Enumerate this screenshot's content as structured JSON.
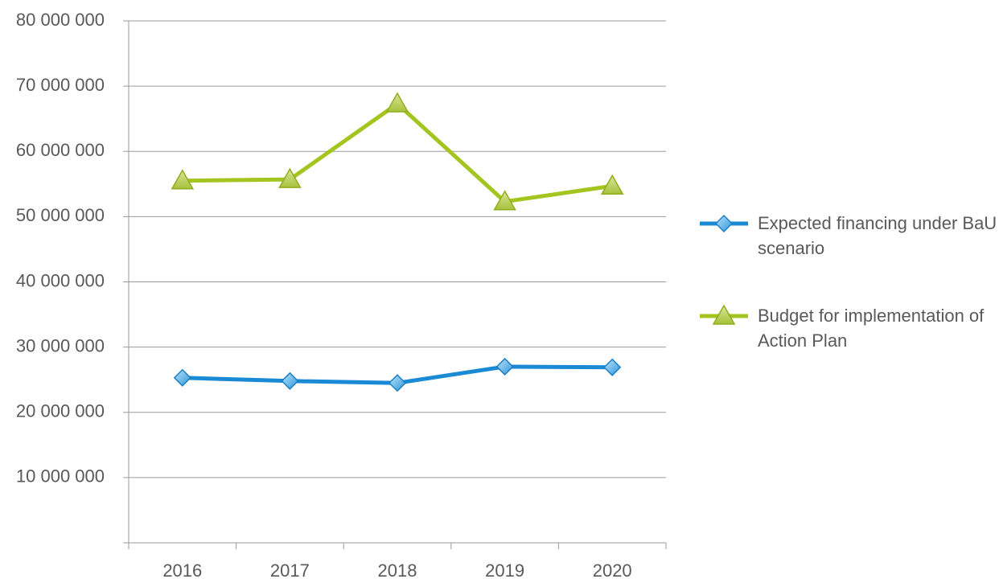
{
  "chart_data": {
    "type": "line",
    "categories": [
      "2016",
      "2017",
      "2018",
      "2019",
      "2020"
    ],
    "series": [
      {
        "name": "Expected financing under BaU scenario",
        "color": "#1a8ad4",
        "marker": "diamond",
        "values": [
          25300000,
          24800000,
          24500000,
          27000000,
          26900000
        ]
      },
      {
        "name": "Budget for implementation of Action Plan",
        "color": "#a4c520",
        "marker": "triangle",
        "values": [
          55500000,
          55700000,
          67300000,
          52300000,
          54700000
        ]
      }
    ],
    "ylim": [
      0,
      80000000
    ],
    "yticks": [
      {
        "value": 10000000,
        "label": "10 000 000"
      },
      {
        "value": 20000000,
        "label": "20 000 000"
      },
      {
        "value": 30000000,
        "label": "30 000 000"
      },
      {
        "value": 40000000,
        "label": "40 000 000"
      },
      {
        "value": 50000000,
        "label": "50 000 000"
      },
      {
        "value": 60000000,
        "label": "60 000 000"
      },
      {
        "value": 70000000,
        "label": "70 000 000"
      },
      {
        "value": 80000000,
        "label": "80 000 000"
      }
    ],
    "grid": true,
    "legend": "right"
  }
}
